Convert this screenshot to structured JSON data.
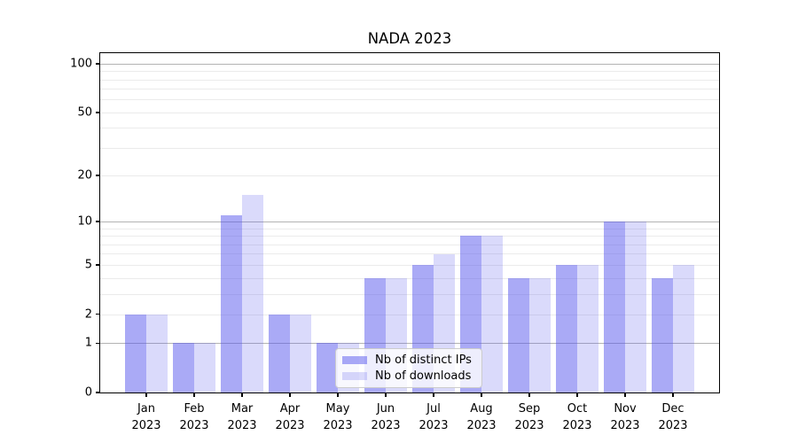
{
  "title": "NADA 2023",
  "chart_data": {
    "type": "bar",
    "title": "NADA 2023",
    "categories": [
      "Jan",
      "Feb",
      "Mar",
      "Apr",
      "May",
      "Jun",
      "Jul",
      "Aug",
      "Sep",
      "Oct",
      "Nov",
      "Dec"
    ],
    "category_year": "2023",
    "series": [
      {
        "name": "Nb of distinct IPs",
        "color": "rgba(85,85,238,0.50)",
        "values": [
          2,
          1,
          11,
          2,
          1,
          4,
          5,
          8,
          4,
          5,
          10,
          4
        ]
      },
      {
        "name": "Nb of downloads",
        "color": "rgba(85,85,238,0.22)",
        "values": [
          2,
          1,
          15,
          2,
          1,
          4,
          6,
          8,
          4,
          5,
          10,
          5
        ]
      }
    ],
    "yscale": "log1p",
    "ylim": [
      0,
      116
    ],
    "yticks": [
      0,
      1,
      2,
      5,
      10,
      20,
      50,
      100
    ],
    "gridlines": {
      "major": [
        1,
        10,
        100
      ],
      "minor": [
        2,
        3,
        4,
        5,
        6,
        7,
        8,
        9,
        20,
        30,
        40,
        50,
        60,
        70,
        80,
        90
      ]
    },
    "legend_position": "lower-center",
    "colors": {
      "bar_base": "#5555ee",
      "grid_major": "#b3b3b3",
      "grid_minor": "#ebebeb",
      "spine": "#000000",
      "text": "#000000"
    }
  }
}
